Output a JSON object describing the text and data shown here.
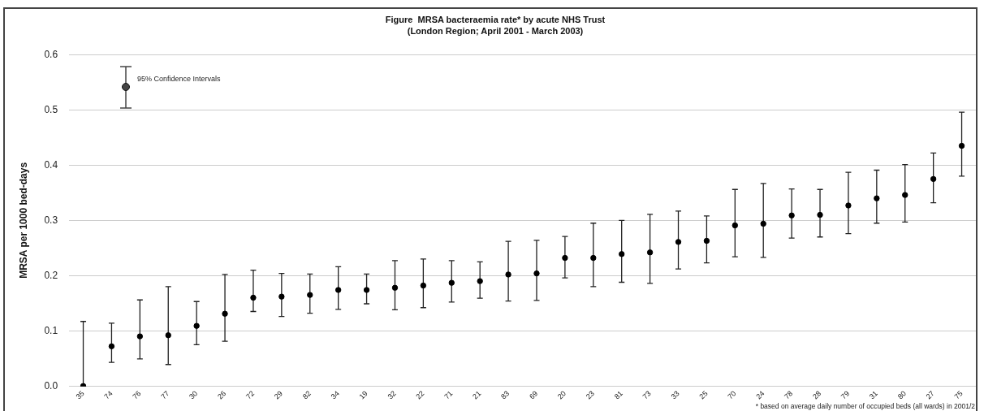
{
  "chart_data": {
    "type": "scatter",
    "title": "Figure  MRSA bacteraemia rate* by acute NHS Trust",
    "subtitle": "(London Region; April 2001 - March 2003)",
    "ylabel": "MRSA per 1000 bed-days",
    "categories": [
      "35",
      "74",
      "76",
      "77",
      "30",
      "26",
      "72",
      "29",
      "82",
      "34",
      "19",
      "32",
      "22",
      "71",
      "21",
      "83",
      "69",
      "20",
      "23",
      "81",
      "73",
      "33",
      "25",
      "70",
      "24",
      "78",
      "28",
      "79",
      "31",
      "80",
      "27",
      "75"
    ],
    "series": [
      {
        "color": "#000000",
        "values": [
          0,
          0.072,
          0.09,
          0.092,
          0.109,
          0.131,
          0.16,
          0.162,
          0.165,
          0.174,
          0.174,
          0.178,
          0.182,
          0.187,
          0.19,
          0.202,
          0.204,
          0.232,
          0.232,
          0.239,
          0.242,
          0.261,
          0.263,
          0.291,
          0.294,
          0.309,
          0.31,
          0.327,
          0.34,
          0.346,
          0.375,
          0.435
        ],
        "errors": [
          [
            0,
            0.117
          ],
          [
            0.043,
            0.114
          ],
          [
            0.049,
            0.156
          ],
          [
            0.039,
            0.18
          ],
          [
            0.075,
            0.153
          ],
          [
            0.081,
            0.202
          ],
          [
            0.135,
            0.21
          ],
          [
            0.126,
            0.204
          ],
          [
            0.132,
            0.203
          ],
          [
            0.139,
            0.216
          ],
          [
            0.149,
            0.203
          ],
          [
            0.138,
            0.227
          ],
          [
            0.142,
            0.23
          ],
          [
            0.152,
            0.227
          ],
          [
            0.159,
            0.225
          ],
          [
            0.154,
            0.262
          ],
          [
            0.155,
            0.264
          ],
          [
            0.196,
            0.271
          ],
          [
            0.18,
            0.295
          ],
          [
            0.188,
            0.3
          ],
          [
            0.186,
            0.311
          ],
          [
            0.212,
            0.317
          ],
          [
            0.223,
            0.308
          ],
          [
            0.234,
            0.356
          ],
          [
            0.233,
            0.367
          ],
          [
            0.268,
            0.357
          ],
          [
            0.27,
            0.356
          ],
          [
            0.276,
            0.387
          ],
          [
            0.295,
            0.391
          ],
          [
            0.297,
            0.401
          ],
          [
            0.332,
            0.422
          ],
          [
            0.38,
            0.496
          ]
        ]
      }
    ],
    "ylim": [
      0,
      0.6
    ],
    "yticks": [
      {
        "value": 0,
        "label": "0.0"
      },
      {
        "value": 0.1,
        "label": "0.1"
      },
      {
        "value": 0.2,
        "label": "0.2"
      },
      {
        "value": 0.3,
        "label": "0.3"
      },
      {
        "value": 0.4,
        "label": "0.4"
      },
      {
        "value": 0.5,
        "label": "0.5"
      },
      {
        "value": 0.6,
        "label": "0.6"
      }
    ],
    "grid": "y",
    "marker": "circle",
    "legend": false,
    "annotations": [
      "95% Confidence Intervals",
      "* based on average daily number of occupied beds (all wards) in 2001/2"
    ]
  }
}
